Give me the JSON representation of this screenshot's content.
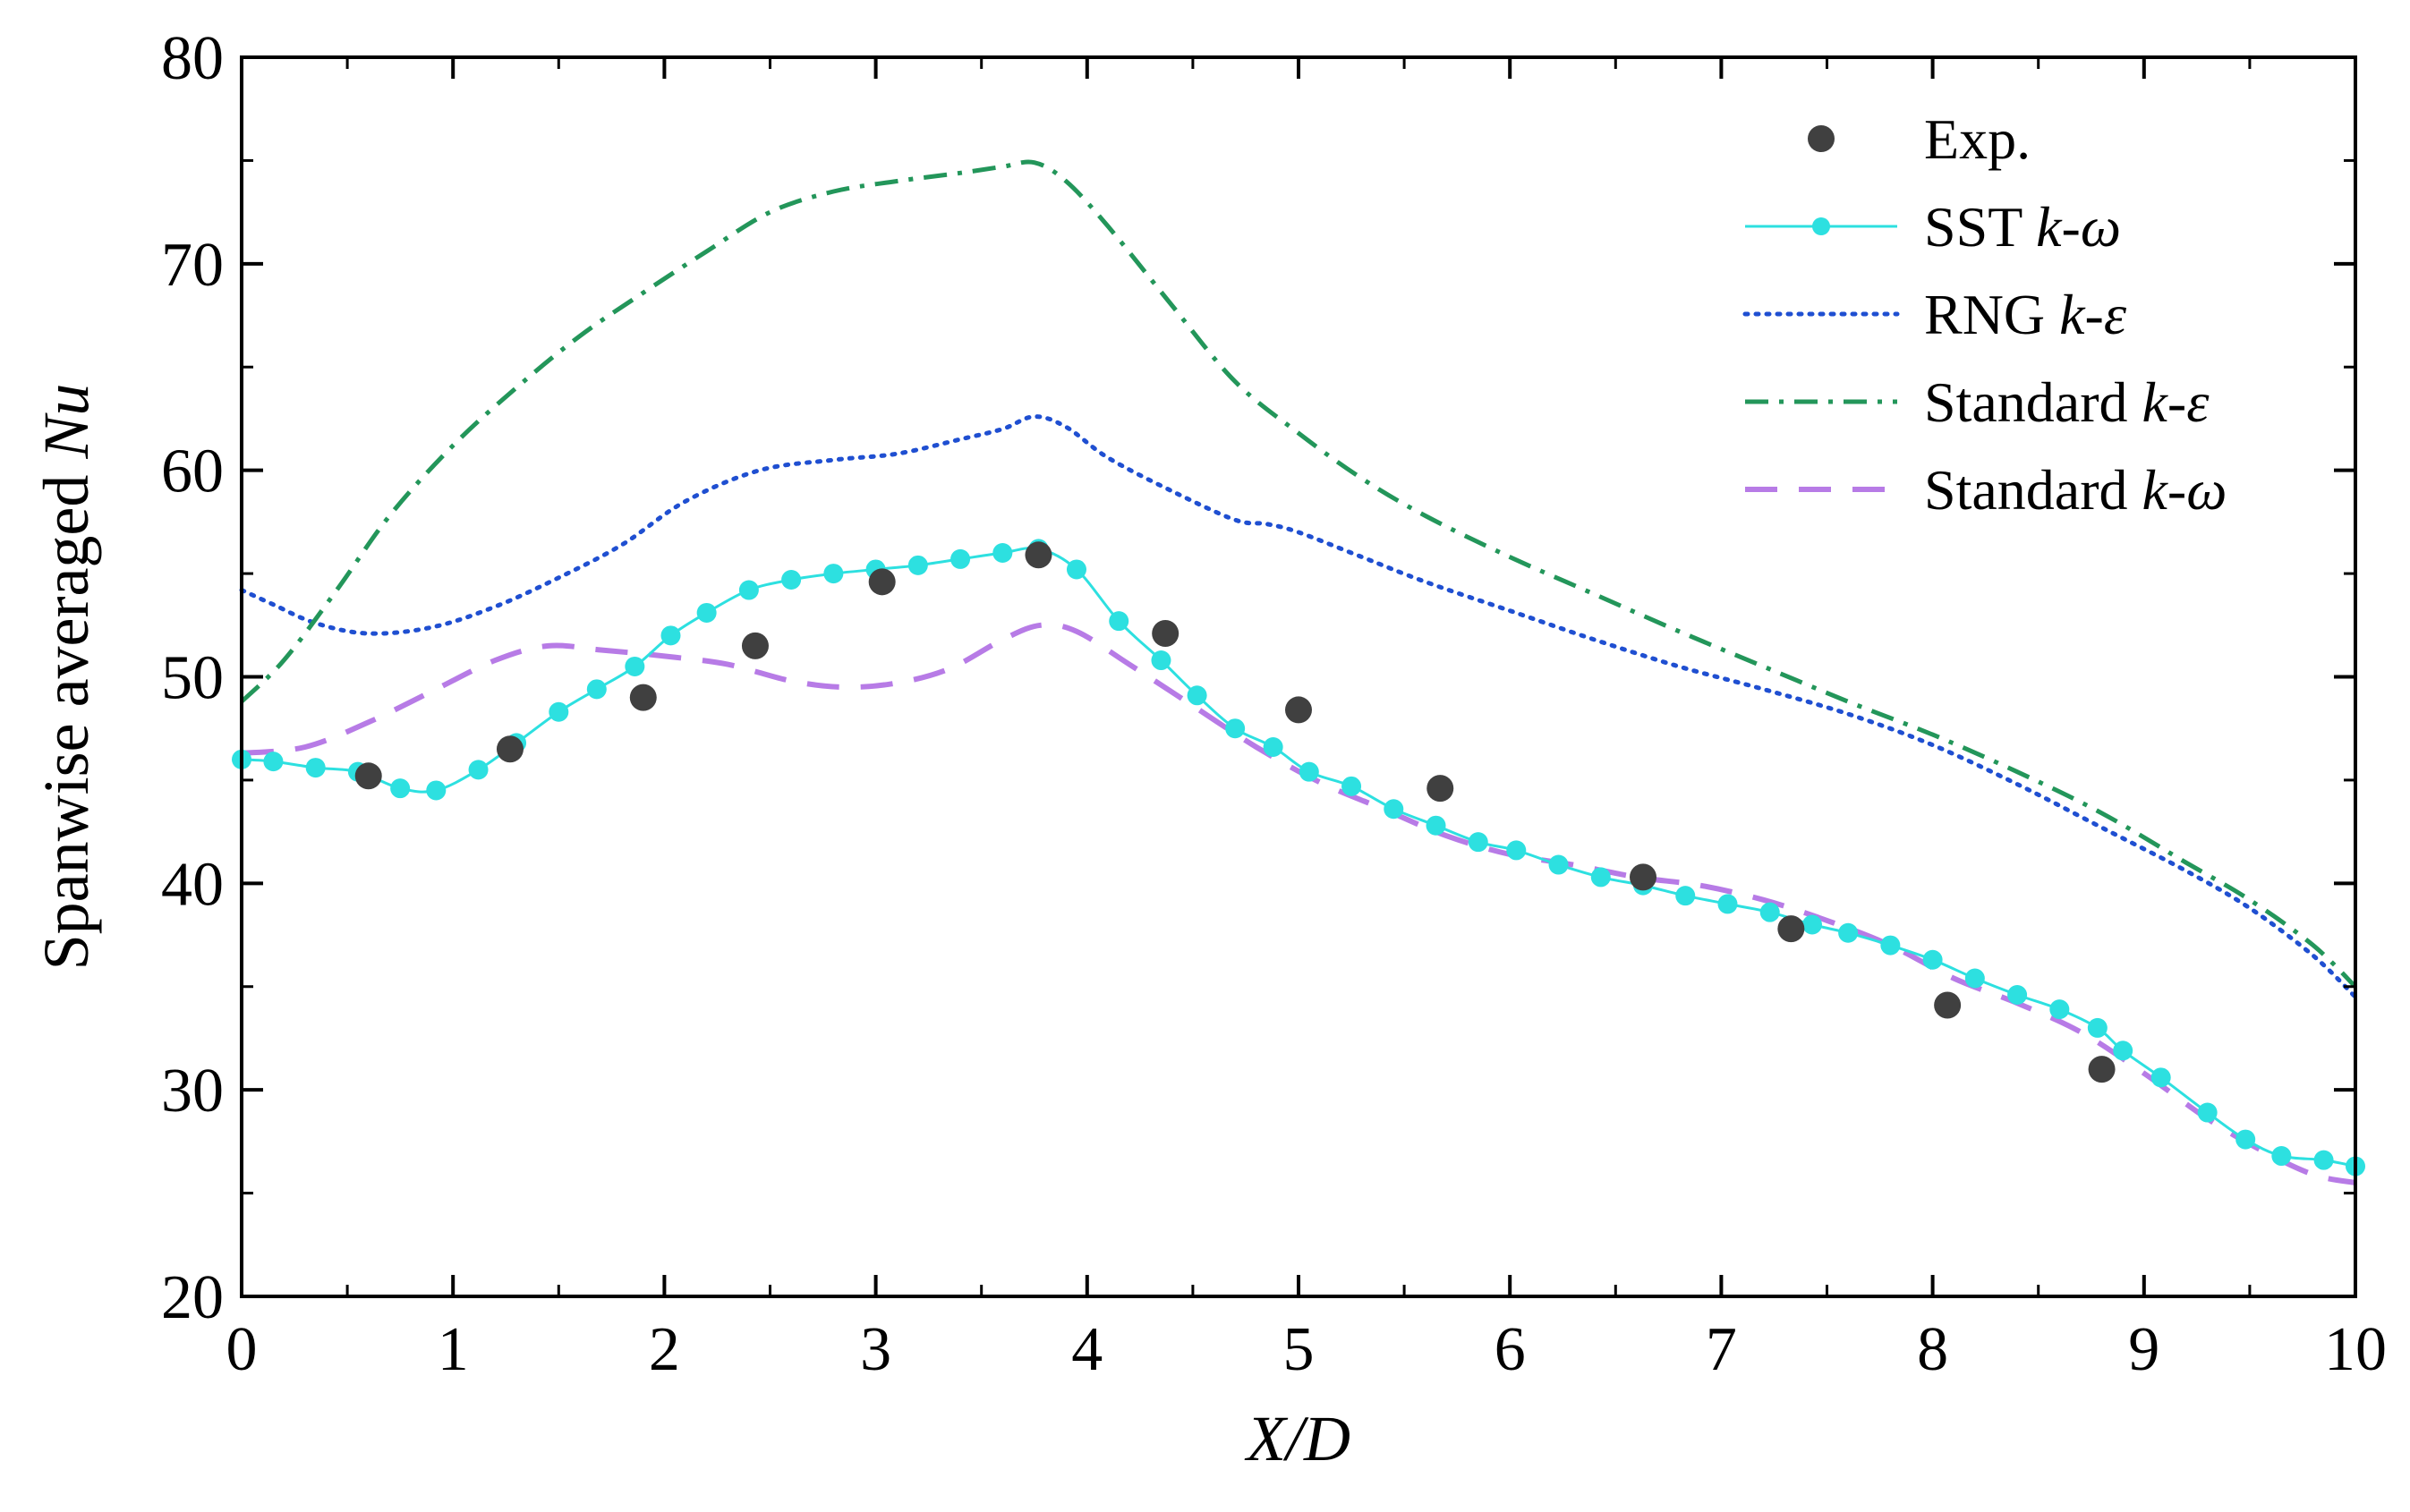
{
  "chart_data": {
    "type": "line",
    "title": "",
    "xlabel": "X/D",
    "ylabel_prefix": "Spanwise averaged ",
    "ylabel_italic": "Nu",
    "xlim": [
      0,
      10
    ],
    "ylim": [
      20,
      80
    ],
    "x_ticks": [
      0,
      1,
      2,
      3,
      4,
      5,
      6,
      7,
      8,
      9,
      10
    ],
    "y_ticks": [
      20,
      30,
      40,
      50,
      60,
      70,
      80
    ],
    "grid": false,
    "legend_position": "top-right",
    "colors": {
      "exp": "#404040",
      "sst": "#2de0e0",
      "rng": "#1f4fd1",
      "std_ke": "#23965a",
      "std_kw": "#b77be6"
    },
    "series": [
      {
        "key": "exp",
        "name": "Exp.",
        "name_prefix": "Exp.",
        "name_italic": "",
        "style": "markers",
        "points": [
          [
            0.6,
            45.2
          ],
          [
            1.27,
            46.5
          ],
          [
            1.9,
            49.0
          ],
          [
            2.43,
            51.5
          ],
          [
            3.03,
            54.6
          ],
          [
            3.77,
            55.9
          ],
          [
            4.37,
            52.1
          ],
          [
            5.0,
            48.4
          ],
          [
            5.67,
            44.6
          ],
          [
            6.63,
            40.3
          ],
          [
            7.33,
            37.8
          ],
          [
            8.07,
            34.1
          ],
          [
            8.8,
            31.0
          ]
        ]
      },
      {
        "key": "sst",
        "name": "SST k-ω",
        "name_prefix": "SST ",
        "name_italic": "k-ω",
        "style": "line-markers",
        "points": [
          [
            0.0,
            46.0
          ],
          [
            0.15,
            45.9
          ],
          [
            0.35,
            45.6
          ],
          [
            0.55,
            45.4
          ],
          [
            0.75,
            44.6
          ],
          [
            0.92,
            44.5
          ],
          [
            1.12,
            45.5
          ],
          [
            1.3,
            46.8
          ],
          [
            1.5,
            48.3
          ],
          [
            1.68,
            49.4
          ],
          [
            1.86,
            50.5
          ],
          [
            2.03,
            52.0
          ],
          [
            2.2,
            53.1
          ],
          [
            2.4,
            54.2
          ],
          [
            2.6,
            54.7
          ],
          [
            2.8,
            55.0
          ],
          [
            3.0,
            55.2
          ],
          [
            3.2,
            55.4
          ],
          [
            3.4,
            55.7
          ],
          [
            3.6,
            56.0
          ],
          [
            3.77,
            56.2
          ],
          [
            3.95,
            55.2
          ],
          [
            4.15,
            52.7
          ],
          [
            4.35,
            50.8
          ],
          [
            4.52,
            49.1
          ],
          [
            4.7,
            47.5
          ],
          [
            4.88,
            46.6
          ],
          [
            5.05,
            45.4
          ],
          [
            5.25,
            44.7
          ],
          [
            5.45,
            43.6
          ],
          [
            5.65,
            42.8
          ],
          [
            5.85,
            42.0
          ],
          [
            6.03,
            41.6
          ],
          [
            6.23,
            40.9
          ],
          [
            6.43,
            40.3
          ],
          [
            6.63,
            39.9
          ],
          [
            6.83,
            39.4
          ],
          [
            7.03,
            39.0
          ],
          [
            7.23,
            38.6
          ],
          [
            7.43,
            38.0
          ],
          [
            7.6,
            37.6
          ],
          [
            7.8,
            37.0
          ],
          [
            8.0,
            36.3
          ],
          [
            8.2,
            35.4
          ],
          [
            8.4,
            34.6
          ],
          [
            8.6,
            33.9
          ],
          [
            8.78,
            33.0
          ],
          [
            8.9,
            31.9
          ],
          [
            9.08,
            30.6
          ],
          [
            9.3,
            28.9
          ],
          [
            9.48,
            27.6
          ],
          [
            9.65,
            26.8
          ],
          [
            9.85,
            26.6
          ],
          [
            10.0,
            26.3
          ]
        ]
      },
      {
        "key": "rng",
        "name": "RNG k-ε",
        "name_prefix": "RNG ",
        "name_italic": "k-ε",
        "style": "dotted",
        "points": [
          [
            0.0,
            54.2
          ],
          [
            0.15,
            53.5
          ],
          [
            0.35,
            52.6
          ],
          [
            0.6,
            52.1
          ],
          [
            0.9,
            52.4
          ],
          [
            1.2,
            53.4
          ],
          [
            1.5,
            54.8
          ],
          [
            1.8,
            56.4
          ],
          [
            2.1,
            58.5
          ],
          [
            2.45,
            60.0
          ],
          [
            2.8,
            60.5
          ],
          [
            3.1,
            60.8
          ],
          [
            3.4,
            61.5
          ],
          [
            3.6,
            62.0
          ],
          [
            3.75,
            62.6
          ],
          [
            3.9,
            62.1
          ],
          [
            4.1,
            60.6
          ],
          [
            4.4,
            59.0
          ],
          [
            4.7,
            57.6
          ],
          [
            4.85,
            57.4
          ],
          [
            5.0,
            57.0
          ],
          [
            5.3,
            55.8
          ],
          [
            5.6,
            54.6
          ],
          [
            6.0,
            53.2
          ],
          [
            6.4,
            51.8
          ],
          [
            6.8,
            50.5
          ],
          [
            7.2,
            49.4
          ],
          [
            7.6,
            48.2
          ],
          [
            8.0,
            46.7
          ],
          [
            8.4,
            44.8
          ],
          [
            8.8,
            42.7
          ],
          [
            9.2,
            40.6
          ],
          [
            9.5,
            38.8
          ],
          [
            9.8,
            36.5
          ],
          [
            10.0,
            34.5
          ]
        ]
      },
      {
        "key": "std_ke",
        "name": "Standard k-ε",
        "name_prefix": "Standard ",
        "name_italic": "k-ε",
        "style": "dash-dot",
        "points": [
          [
            0.0,
            48.8
          ],
          [
            0.2,
            50.8
          ],
          [
            0.45,
            54.2
          ],
          [
            0.7,
            57.8
          ],
          [
            1.0,
            61.2
          ],
          [
            1.3,
            64.0
          ],
          [
            1.6,
            66.5
          ],
          [
            1.9,
            68.6
          ],
          [
            2.2,
            70.6
          ],
          [
            2.5,
            72.5
          ],
          [
            2.8,
            73.5
          ],
          [
            3.1,
            74.0
          ],
          [
            3.4,
            74.4
          ],
          [
            3.6,
            74.7
          ],
          [
            3.75,
            74.9
          ],
          [
            3.9,
            74.0
          ],
          [
            4.1,
            71.8
          ],
          [
            4.4,
            68.0
          ],
          [
            4.7,
            64.3
          ],
          [
            5.0,
            61.8
          ],
          [
            5.3,
            59.6
          ],
          [
            5.6,
            57.8
          ],
          [
            6.0,
            55.8
          ],
          [
            6.4,
            54.0
          ],
          [
            6.8,
            52.2
          ],
          [
            7.2,
            50.5
          ],
          [
            7.6,
            48.8
          ],
          [
            8.0,
            47.2
          ],
          [
            8.4,
            45.4
          ],
          [
            8.8,
            43.4
          ],
          [
            9.2,
            41.0
          ],
          [
            9.5,
            39.2
          ],
          [
            9.8,
            37.0
          ],
          [
            10.0,
            35.0
          ]
        ]
      },
      {
        "key": "std_kw",
        "name": "Standard k-ω",
        "name_prefix": "Standard ",
        "name_italic": "k-ω",
        "style": "dashed",
        "points": [
          [
            0.0,
            46.3
          ],
          [
            0.3,
            46.6
          ],
          [
            0.6,
            47.8
          ],
          [
            0.9,
            49.3
          ],
          [
            1.2,
            50.8
          ],
          [
            1.45,
            51.5
          ],
          [
            1.7,
            51.3
          ],
          [
            2.0,
            51.0
          ],
          [
            2.3,
            50.6
          ],
          [
            2.6,
            49.8
          ],
          [
            2.85,
            49.5
          ],
          [
            3.1,
            49.7
          ],
          [
            3.35,
            50.4
          ],
          [
            3.6,
            51.8
          ],
          [
            3.78,
            52.5
          ],
          [
            3.95,
            52.2
          ],
          [
            4.2,
            50.6
          ],
          [
            4.5,
            48.6
          ],
          [
            4.8,
            46.6
          ],
          [
            5.1,
            44.9
          ],
          [
            5.4,
            43.6
          ],
          [
            5.7,
            42.3
          ],
          [
            6.0,
            41.4
          ],
          [
            6.3,
            40.9
          ],
          [
            6.6,
            40.3
          ],
          [
            6.9,
            39.9
          ],
          [
            7.2,
            39.2
          ],
          [
            7.5,
            38.2
          ],
          [
            7.8,
            37.0
          ],
          [
            8.1,
            35.4
          ],
          [
            8.4,
            34.2
          ],
          [
            8.7,
            32.8
          ],
          [
            9.0,
            30.8
          ],
          [
            9.3,
            28.6
          ],
          [
            9.55,
            27.1
          ],
          [
            9.8,
            25.9
          ],
          [
            10.0,
            25.5
          ]
        ]
      }
    ]
  }
}
